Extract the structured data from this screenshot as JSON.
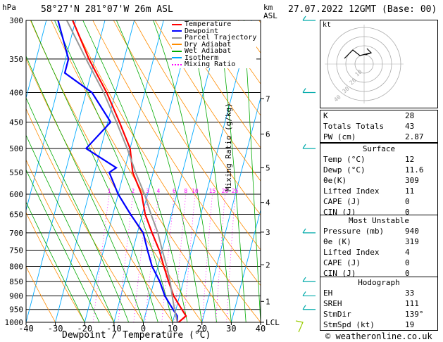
{
  "header": {
    "left": "58°27'N  281°07'W  26m  ASL",
    "right": "27.07.2022  12GMT  (Base: 00)",
    "hpa": "hPa",
    "km": "km",
    "asl": "ASL"
  },
  "footer": "© weatheronline.co.uk",
  "legend": [
    {
      "label": "Temperature",
      "color": "#ff0000",
      "style": "solid"
    },
    {
      "label": "Dewpoint",
      "color": "#0000ff",
      "style": "solid"
    },
    {
      "label": "Parcel Trajectory",
      "color": "#999999",
      "style": "solid"
    },
    {
      "label": "Dry Adiabat",
      "color": "#ff8c00",
      "style": "solid"
    },
    {
      "label": "Wet Adiabat",
      "color": "#00aa00",
      "style": "solid"
    },
    {
      "label": "Isotherm",
      "color": "#00aaff",
      "style": "solid"
    },
    {
      "label": "Mixing Ratio",
      "color": "#ff00ff",
      "style": "dotted"
    }
  ],
  "chart_data": {
    "type": "line",
    "xlabel": "Dewpoint / Temperature (°C)",
    "ylabel": "hPa",
    "right_axis_label": "Mixing Ratio (g/kg)",
    "xlim": [
      -40,
      40
    ],
    "ylim": [
      1000,
      300
    ],
    "y_scale": "log",
    "skew": true,
    "x_ticks": [
      "-40",
      "-30",
      "-20",
      "-10",
      "0",
      "10",
      "20",
      "30",
      "40"
    ],
    "pressure_levels": [
      300,
      350,
      400,
      450,
      500,
      550,
      600,
      650,
      700,
      750,
      800,
      850,
      900,
      950,
      1000
    ],
    "km_ticks": [
      {
        "km": "1",
        "p": 920
      },
      {
        "km": "2",
        "p": 795
      },
      {
        "km": "3",
        "p": 698
      },
      {
        "km": "4",
        "p": 620
      },
      {
        "km": "5",
        "p": 540
      },
      {
        "km": "6",
        "p": 472
      },
      {
        "km": "7",
        "p": 410
      },
      {
        "km": "LCL",
        "p": 1000
      }
    ],
    "mixing_ratio_labels": [
      "1",
      "2",
      "3",
      "4",
      "6",
      "8",
      "10",
      "15",
      "20",
      "25"
    ],
    "series": [
      {
        "name": "Temperature",
        "color": "#ff0000",
        "p": [
          1000,
          975,
          950,
          925,
          900,
          850,
          800,
          750,
          700,
          650,
          600,
          550,
          500,
          450,
          400,
          350,
          300
        ],
        "t": [
          12,
          14,
          12,
          10,
          8,
          5,
          2,
          -1,
          -5,
          -9,
          -12,
          -17,
          -20,
          -26,
          -33,
          -42,
          -51
        ]
      },
      {
        "name": "Dewpoint",
        "color": "#0000ff",
        "p": [
          1000,
          975,
          950,
          925,
          900,
          850,
          800,
          750,
          700,
          650,
          600,
          550,
          540,
          500,
          450,
          400,
          370,
          350,
          300
        ],
        "t": [
          11.6,
          11,
          9,
          7,
          5,
          2,
          -2,
          -5,
          -8,
          -14,
          -20,
          -25,
          -23,
          -35,
          -29,
          -38,
          -49,
          -49,
          -56
        ]
      },
      {
        "name": "Parcel Trajectory",
        "color": "#999999",
        "p": [
          1000,
          950,
          900,
          850,
          800,
          750,
          700,
          650,
          600,
          550,
          500,
          450,
          400,
          350,
          300
        ],
        "t": [
          11.6,
          9.5,
          7.5,
          5.5,
          3,
          0,
          -3,
          -7,
          -11,
          -16,
          -21,
          -27,
          -34,
          -43,
          -53
        ]
      }
    ]
  },
  "hodograph": {
    "label": "kt",
    "rings": [
      "10",
      "20",
      "30",
      "40"
    ]
  },
  "indices": {
    "top": [
      {
        "k": "K",
        "v": "28"
      },
      {
        "k": "Totals Totals",
        "v": "43"
      },
      {
        "k": "PW (cm)",
        "v": "2.87"
      }
    ],
    "surface_title": "Surface",
    "surface": [
      {
        "k": "Temp (°C)",
        "v": "12"
      },
      {
        "k": "Dewp (°C)",
        "v": "11.6"
      },
      {
        "k": "θe(K)",
        "v": "309"
      },
      {
        "k": "Lifted Index",
        "v": "11"
      },
      {
        "k": "CAPE (J)",
        "v": "0"
      },
      {
        "k": "CIN (J)",
        "v": "0"
      }
    ],
    "mu_title": "Most Unstable",
    "mu": [
      {
        "k": "Pressure (mb)",
        "v": "940"
      },
      {
        "k": "θe (K)",
        "v": "319"
      },
      {
        "k": "Lifted Index",
        "v": "4"
      },
      {
        "k": "CAPE (J)",
        "v": "0"
      },
      {
        "k": "CIN (J)",
        "v": "0"
      }
    ],
    "hodo_title": "Hodograph",
    "hodo": [
      {
        "k": "EH",
        "v": "33"
      },
      {
        "k": "SREH",
        "v": "111"
      },
      {
        "k": "StmDir",
        "v": "139°"
      },
      {
        "k": "StmSpd (kt)",
        "v": "19"
      }
    ]
  }
}
